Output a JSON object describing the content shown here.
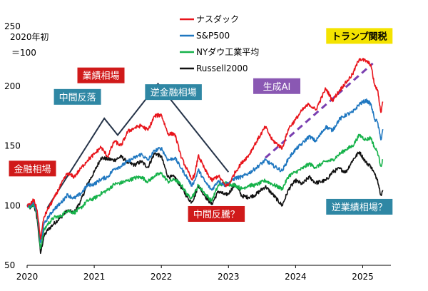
{
  "chart_data": {
    "type": "line",
    "base_note_line1": "2020年初",
    "base_note_line2": "＝100",
    "ylim": [
      50,
      250
    ],
    "y_ticks": [
      "50",
      "100",
      "150",
      "200",
      "250"
    ],
    "x_ticks": [
      "2020",
      "2021",
      "2022",
      "2023",
      "2024",
      "2025"
    ],
    "grid": false,
    "legend_position": "top-center",
    "series": [
      {
        "name": "ナスダック",
        "color": "#e8141b",
        "points": [
          [
            2020.0,
            100
          ],
          [
            2020.05,
            101
          ],
          [
            2020.1,
            105
          ],
          [
            2020.15,
            96
          ],
          [
            2020.2,
            72
          ],
          [
            2020.25,
            90
          ],
          [
            2020.3,
            96
          ],
          [
            2020.4,
            106
          ],
          [
            2020.5,
            117
          ],
          [
            2020.6,
            127
          ],
          [
            2020.7,
            124
          ],
          [
            2020.8,
            131
          ],
          [
            2020.9,
            138
          ],
          [
            2021.0,
            143
          ],
          [
            2021.1,
            149
          ],
          [
            2021.2,
            141
          ],
          [
            2021.3,
            154
          ],
          [
            2021.4,
            150
          ],
          [
            2021.5,
            162
          ],
          [
            2021.6,
            165
          ],
          [
            2021.7,
            167
          ],
          [
            2021.8,
            163
          ],
          [
            2021.9,
            175
          ],
          [
            2022.0,
            176
          ],
          [
            2022.1,
            160
          ],
          [
            2022.2,
            160
          ],
          [
            2022.3,
            140
          ],
          [
            2022.4,
            128
          ],
          [
            2022.45,
            122
          ],
          [
            2022.5,
            126
          ],
          [
            2022.55,
            142
          ],
          [
            2022.65,
            130
          ],
          [
            2022.75,
            121
          ],
          [
            2022.85,
            125
          ],
          [
            2022.95,
            117
          ],
          [
            2023.0,
            117
          ],
          [
            2023.1,
            128
          ],
          [
            2023.2,
            136
          ],
          [
            2023.3,
            142
          ],
          [
            2023.4,
            152
          ],
          [
            2023.55,
            166
          ],
          [
            2023.65,
            155
          ],
          [
            2023.8,
            148
          ],
          [
            2023.9,
            165
          ],
          [
            2024.0,
            172
          ],
          [
            2024.1,
            180
          ],
          [
            2024.2,
            185
          ],
          [
            2024.3,
            180
          ],
          [
            2024.45,
            198
          ],
          [
            2024.55,
            188
          ],
          [
            2024.65,
            196
          ],
          [
            2024.75,
            203
          ],
          [
            2024.85,
            210
          ],
          [
            2024.95,
            223
          ],
          [
            2025.05,
            221
          ],
          [
            2025.12,
            218
          ],
          [
            2025.18,
            200
          ],
          [
            2025.22,
            197
          ],
          [
            2025.27,
            178
          ],
          [
            2025.3,
            187
          ]
        ]
      },
      {
        "name": "S&P500",
        "color": "#1f77c0",
        "points": [
          [
            2020.0,
            100
          ],
          [
            2020.05,
            100
          ],
          [
            2020.1,
            102
          ],
          [
            2020.15,
            94
          ],
          [
            2020.2,
            69
          ],
          [
            2020.25,
            84
          ],
          [
            2020.3,
            89
          ],
          [
            2020.4,
            97
          ],
          [
            2020.5,
            102
          ],
          [
            2020.6,
            109
          ],
          [
            2020.7,
            106
          ],
          [
            2020.8,
            110
          ],
          [
            2020.9,
            117
          ],
          [
            2021.0,
            118
          ],
          [
            2021.1,
            122
          ],
          [
            2021.2,
            124
          ],
          [
            2021.3,
            131
          ],
          [
            2021.4,
            133
          ],
          [
            2021.5,
            137
          ],
          [
            2021.6,
            140
          ],
          [
            2021.7,
            143
          ],
          [
            2021.8,
            138
          ],
          [
            2021.9,
            146
          ],
          [
            2022.0,
            148
          ],
          [
            2022.1,
            138
          ],
          [
            2022.2,
            140
          ],
          [
            2022.3,
            131
          ],
          [
            2022.4,
            122
          ],
          [
            2022.45,
            117
          ],
          [
            2022.5,
            121
          ],
          [
            2022.55,
            130
          ],
          [
            2022.65,
            120
          ],
          [
            2022.75,
            113
          ],
          [
            2022.85,
            121
          ],
          [
            2022.95,
            117
          ],
          [
            2023.0,
            119
          ],
          [
            2023.1,
            123
          ],
          [
            2023.2,
            124
          ],
          [
            2023.3,
            127
          ],
          [
            2023.4,
            131
          ],
          [
            2023.55,
            138
          ],
          [
            2023.65,
            134
          ],
          [
            2023.8,
            129
          ],
          [
            2023.9,
            140
          ],
          [
            2024.0,
            147
          ],
          [
            2024.1,
            152
          ],
          [
            2024.2,
            158
          ],
          [
            2024.3,
            154
          ],
          [
            2024.45,
            166
          ],
          [
            2024.55,
            163
          ],
          [
            2024.65,
            172
          ],
          [
            2024.75,
            176
          ],
          [
            2024.85,
            178
          ],
          [
            2024.95,
            185
          ],
          [
            2025.05,
            188
          ],
          [
            2025.12,
            185
          ],
          [
            2025.18,
            172
          ],
          [
            2025.22,
            170
          ],
          [
            2025.27,
            155
          ],
          [
            2025.3,
            164
          ]
        ]
      },
      {
        "name": "NYダウ工業平均",
        "color": "#16b24a",
        "points": [
          [
            2020.0,
            100
          ],
          [
            2020.05,
            99
          ],
          [
            2020.1,
            101
          ],
          [
            2020.15,
            92
          ],
          [
            2020.2,
            64
          ],
          [
            2020.25,
            79
          ],
          [
            2020.3,
            84
          ],
          [
            2020.4,
            90
          ],
          [
            2020.5,
            91
          ],
          [
            2020.6,
            96
          ],
          [
            2020.7,
            94
          ],
          [
            2020.8,
            98
          ],
          [
            2020.9,
            104
          ],
          [
            2021.0,
            106
          ],
          [
            2021.1,
            110
          ],
          [
            2021.2,
            113
          ],
          [
            2021.3,
            118
          ],
          [
            2021.4,
            119
          ],
          [
            2021.5,
            121
          ],
          [
            2021.6,
            123
          ],
          [
            2021.7,
            124
          ],
          [
            2021.8,
            120
          ],
          [
            2021.9,
            125
          ],
          [
            2022.0,
            127
          ],
          [
            2022.1,
            120
          ],
          [
            2022.2,
            122
          ],
          [
            2022.3,
            117
          ],
          [
            2022.4,
            108
          ],
          [
            2022.45,
            107
          ],
          [
            2022.5,
            111
          ],
          [
            2022.55,
            117
          ],
          [
            2022.65,
            110
          ],
          [
            2022.75,
            104
          ],
          [
            2022.85,
            117
          ],
          [
            2022.95,
            119
          ],
          [
            2023.0,
            118
          ],
          [
            2023.1,
            117
          ],
          [
            2023.2,
            114
          ],
          [
            2023.3,
            117
          ],
          [
            2023.4,
            117
          ],
          [
            2023.55,
            121
          ],
          [
            2023.65,
            118
          ],
          [
            2023.8,
            114
          ],
          [
            2023.9,
            125
          ],
          [
            2024.0,
            128
          ],
          [
            2024.1,
            131
          ],
          [
            2024.2,
            135
          ],
          [
            2024.3,
            132
          ],
          [
            2024.45,
            137
          ],
          [
            2024.55,
            138
          ],
          [
            2024.65,
            143
          ],
          [
            2024.75,
            147
          ],
          [
            2024.85,
            150
          ],
          [
            2024.95,
            159
          ],
          [
            2025.05,
            155
          ],
          [
            2025.12,
            157
          ],
          [
            2025.18,
            148
          ],
          [
            2025.22,
            145
          ],
          [
            2025.27,
            133
          ],
          [
            2025.3,
            138
          ]
        ]
      },
      {
        "name": "Russell2000",
        "color": "#111111",
        "points": [
          [
            2020.0,
            100
          ],
          [
            2020.05,
            98
          ],
          [
            2020.1,
            101
          ],
          [
            2020.15,
            89
          ],
          [
            2020.2,
            60
          ],
          [
            2020.25,
            74
          ],
          [
            2020.3,
            79
          ],
          [
            2020.4,
            85
          ],
          [
            2020.5,
            90
          ],
          [
            2020.6,
            96
          ],
          [
            2020.7,
            94
          ],
          [
            2020.8,
            104
          ],
          [
            2020.9,
            118
          ],
          [
            2021.0,
            128
          ],
          [
            2021.1,
            140
          ],
          [
            2021.2,
            139
          ],
          [
            2021.3,
            138
          ],
          [
            2021.4,
            141
          ],
          [
            2021.5,
            136
          ],
          [
            2021.6,
            134
          ],
          [
            2021.7,
            137
          ],
          [
            2021.8,
            132
          ],
          [
            2021.9,
            144
          ],
          [
            2022.0,
            141
          ],
          [
            2022.1,
            124
          ],
          [
            2022.2,
            124
          ],
          [
            2022.3,
            115
          ],
          [
            2022.4,
            106
          ],
          [
            2022.45,
            103
          ],
          [
            2022.5,
            108
          ],
          [
            2022.55,
            117
          ],
          [
            2022.65,
            108
          ],
          [
            2022.75,
            101
          ],
          [
            2022.85,
            112
          ],
          [
            2022.95,
            109
          ],
          [
            2023.0,
            110
          ],
          [
            2023.1,
            118
          ],
          [
            2023.2,
            108
          ],
          [
            2023.3,
            107
          ],
          [
            2023.4,
            109
          ],
          [
            2023.55,
            116
          ],
          [
            2023.65,
            110
          ],
          [
            2023.8,
            100
          ],
          [
            2023.9,
            114
          ],
          [
            2024.0,
            121
          ],
          [
            2024.1,
            118
          ],
          [
            2024.2,
            124
          ],
          [
            2024.3,
            119
          ],
          [
            2024.45,
            121
          ],
          [
            2024.55,
            128
          ],
          [
            2024.65,
            131
          ],
          [
            2024.75,
            128
          ],
          [
            2024.85,
            138
          ],
          [
            2024.95,
            145
          ],
          [
            2025.05,
            136
          ],
          [
            2025.12,
            133
          ],
          [
            2025.18,
            126
          ],
          [
            2025.22,
            122
          ],
          [
            2025.27,
            109
          ],
          [
            2025.3,
            113
          ]
        ]
      }
    ],
    "annotations": [
      {
        "text": "金融相場",
        "box_color": "#d01a1a",
        "text_color": "#ffffff",
        "anchor": [
          2020.08,
          131
        ]
      },
      {
        "text": "中間反落",
        "box_color": "#2f87a4",
        "text_color": "#ffffff",
        "anchor": [
          2020.75,
          191
        ]
      },
      {
        "text": "業績相場",
        "box_color": "#d01a1a",
        "text_color": "#ffffff",
        "anchor": [
          2021.1,
          209
        ]
      },
      {
        "text": "逆金融相場",
        "box_color": "#2f87a4",
        "text_color": "#ffffff",
        "anchor": [
          2022.18,
          195
        ]
      },
      {
        "text": "生成AI",
        "box_color": "#8a58b3",
        "text_color": "#ffffff",
        "anchor": [
          2023.72,
          200
        ]
      },
      {
        "text": "トランプ関税",
        "box_color": "#f4e300",
        "text_color": "#000000",
        "anchor": [
          2024.95,
          242
        ]
      },
      {
        "text": "中間反騰？",
        "box_color": "#d01a1a",
        "text_color": "#ffffff",
        "anchor": [
          2022.82,
          93
        ]
      },
      {
        "text": "逆業績相場？",
        "box_color": "#2f87a4",
        "text_color": "#ffffff",
        "anchor": [
          2024.95,
          99
        ]
      }
    ],
    "trend_lines": [
      {
        "color": "#263449",
        "dashed": false,
        "points": [
          [
            2020.3,
            98
          ],
          [
            2021.15,
            173
          ],
          [
            2021.35,
            159
          ],
          [
            2021.95,
            202
          ],
          [
            2023.0,
            128
          ]
        ]
      },
      {
        "color": "#7a3fb0",
        "dashed": true,
        "points": [
          [
            2023.55,
            140
          ],
          [
            2025.15,
            219
          ]
        ]
      }
    ]
  }
}
